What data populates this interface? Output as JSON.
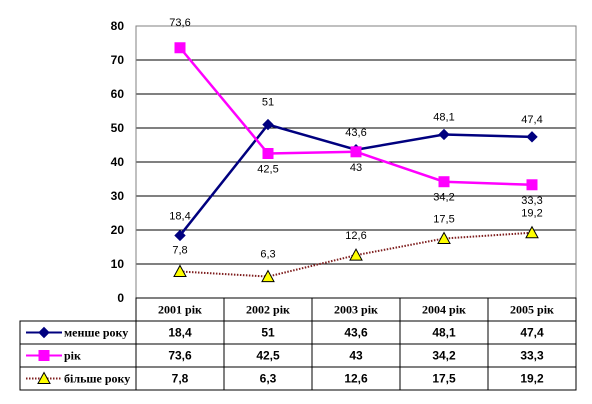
{
  "chart_data": {
    "type": "line",
    "categories": [
      "2001 рік",
      "2002 рік",
      "2003 рік",
      "2004 рік",
      "2005 рік"
    ],
    "ylim": [
      0,
      80
    ],
    "yticks": [
      0,
      10,
      20,
      30,
      40,
      50,
      60,
      70,
      80
    ],
    "grid": true,
    "legend": "data-table-left",
    "series": [
      {
        "name": "менше року",
        "values": [
          18.4,
          51,
          43.6,
          48.1,
          47.4
        ],
        "labels": [
          "18,4",
          "51",
          "43,6",
          "48,1",
          "47,4"
        ],
        "color": "#00007f",
        "marker": "diamond",
        "line_style": "solid"
      },
      {
        "name": "рік",
        "values": [
          73.6,
          42.5,
          43,
          34.2,
          33.3
        ],
        "labels": [
          "73,6",
          "42,5",
          "43",
          "34,2",
          "33,3"
        ],
        "color": "#ff00ff",
        "marker": "square",
        "line_style": "solid"
      },
      {
        "name": "більше року",
        "values": [
          7.8,
          6.3,
          12.6,
          17.5,
          19.2
        ],
        "labels": [
          "7,8",
          "6,3",
          "12,6",
          "17,5",
          "19,2"
        ],
        "color": "#7f1f1f",
        "marker": "triangle",
        "marker_fill": "#ffff00",
        "line_style": "dotted"
      }
    ]
  }
}
